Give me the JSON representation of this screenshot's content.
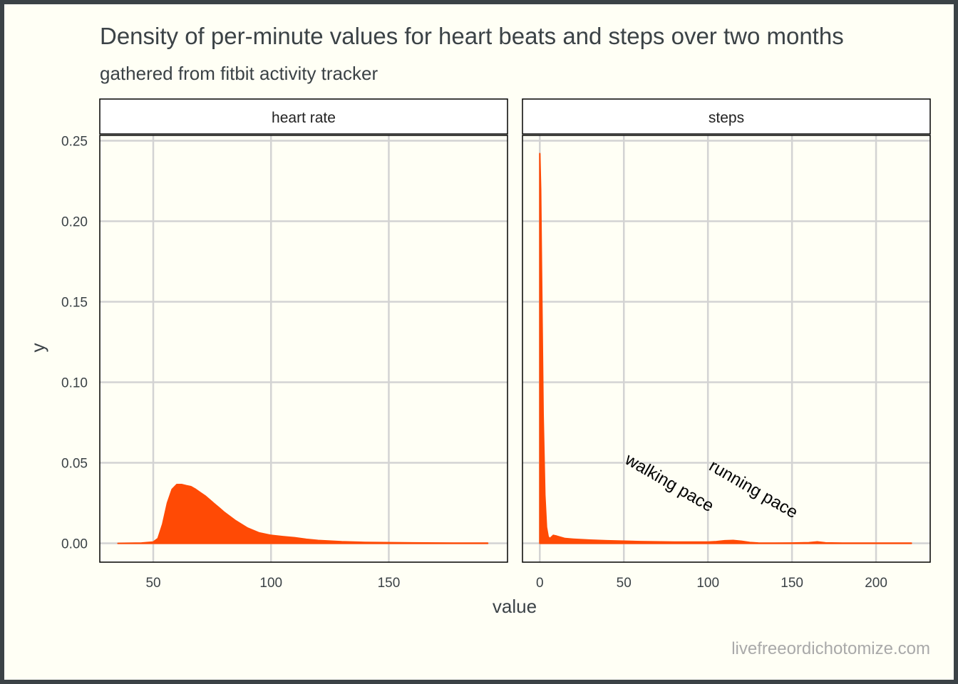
{
  "chart_data": {
    "type": "area",
    "title": "Density of per-minute values for heart beats and steps over two months",
    "subtitle": "gathered from fitbit activity tracker",
    "xlabel": "value",
    "ylabel": "y",
    "caption": "livefreeordichotomize.com",
    "ylim": [
      -0.0117,
      0.2533
    ],
    "y_ticks": [
      0.0,
      0.05,
      0.1,
      0.15,
      0.2,
      0.25
    ],
    "y_tick_labels": [
      "0.00",
      "0.05",
      "0.10",
      "0.15",
      "0.20",
      "0.25"
    ],
    "grid": true,
    "fill_color": "#ff4a05",
    "panel_border_color": "#000000",
    "grid_color": "#d3d3d3",
    "panels": [
      {
        "strip_label": "heart rate",
        "xlim": [
          27.3,
          200.4
        ],
        "x_ticks": [
          50,
          100,
          150
        ],
        "x_tick_labels": [
          "50",
          "100",
          "150"
        ],
        "x": [
          35,
          45,
          50,
          52,
          54,
          56,
          58,
          60,
          62,
          64,
          66,
          68,
          70,
          72,
          74,
          76,
          78,
          80,
          85,
          90,
          95,
          100,
          105,
          110,
          115,
          120,
          130,
          140,
          160,
          180,
          192
        ],
        "y": [
          0,
          0.0002,
          0.0008,
          0.003,
          0.012,
          0.025,
          0.0335,
          0.0365,
          0.0365,
          0.0358,
          0.0352,
          0.0335,
          0.0315,
          0.0295,
          0.027,
          0.0245,
          0.022,
          0.0195,
          0.014,
          0.0095,
          0.0065,
          0.005,
          0.0042,
          0.0035,
          0.0025,
          0.0018,
          0.001,
          0.0006,
          0.0003,
          0.0001,
          0.0001
        ],
        "annotations": []
      },
      {
        "strip_label": "steps",
        "xlim": [
          -10.3,
          232.2
        ],
        "x_ticks": [
          0,
          50,
          100,
          150,
          200
        ],
        "x_tick_labels": [
          "0",
          "50",
          "100",
          "150",
          "200"
        ],
        "x": [
          0,
          0.5,
          1,
          2,
          3,
          4,
          5,
          6,
          8,
          10,
          15,
          20,
          30,
          40,
          60,
          80,
          100,
          105,
          110,
          115,
          120,
          125,
          130,
          140,
          150,
          160,
          165,
          170,
          180,
          200,
          221
        ],
        "y": [
          0.242,
          0.22,
          0.17,
          0.08,
          0.03,
          0.01,
          0.004,
          0.003,
          0.005,
          0.0045,
          0.003,
          0.0026,
          0.002,
          0.0016,
          0.0011,
          0.0008,
          0.0008,
          0.0011,
          0.0016,
          0.0018,
          0.0013,
          0.0005,
          0.0002,
          0.0001,
          0.0002,
          0.0004,
          0.0009,
          0.0003,
          0.0001,
          0.0001,
          0.0001
        ],
        "annotations": [
          {
            "text": "walking pace",
            "x": 50,
            "y": 0.05,
            "angle": 30
          },
          {
            "text": "running pace",
            "x": 100,
            "y": 0.046,
            "angle": 30
          }
        ]
      }
    ]
  }
}
